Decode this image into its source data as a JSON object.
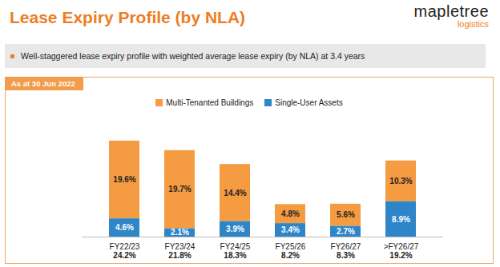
{
  "chart_data": {
    "type": "bar",
    "title": "Lease Expiry Profile (by NLA)",
    "subtitle": "Well-staggered lease expiry profile with weighted average lease expiry (by NLA) at 3.4 years",
    "annotation": "As at 30 Jun 2022",
    "logo": [
      "mapletree",
      "logistics"
    ],
    "categories": [
      "FY22/23",
      "FY23/24",
      "FY24/25",
      "FY25/26",
      "FY26/27",
      ">FY26/27"
    ],
    "series": [
      {
        "name": "Multi-Tenanted Buildings",
        "color": "#F59B42",
        "values": [
          19.6,
          19.7,
          14.4,
          4.8,
          5.6,
          10.3
        ],
        "value_labels": [
          "19.6%",
          "19.7%",
          "14.4%",
          "4.8%",
          "5.6%",
          "10.3%"
        ]
      },
      {
        "name": "Single-User Assets",
        "color": "#2E86C8",
        "values": [
          4.6,
          2.1,
          3.9,
          3.4,
          2.7,
          8.9
        ],
        "value_labels": [
          "4.6%",
          "2.1%",
          "3.9%",
          "3.4%",
          "2.7%",
          "8.9%"
        ]
      }
    ],
    "totals": [
      24.2,
      21.8,
      18.3,
      8.2,
      8.3,
      19.2
    ],
    "total_labels": [
      "24.2%",
      "21.8%",
      "18.3%",
      "8.2%",
      "8.3%",
      "19.2%"
    ],
    "ylim": [
      0,
      26
    ],
    "stacked": true,
    "data_labels": true,
    "tick_labels": "x",
    "grid": false,
    "legend": "top"
  }
}
